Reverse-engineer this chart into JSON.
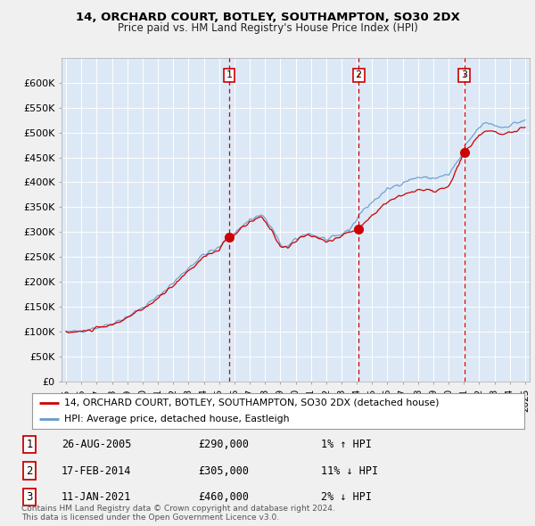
{
  "title": "14, ORCHARD COURT, BOTLEY, SOUTHAMPTON, SO30 2DX",
  "subtitle": "Price paid vs. HM Land Registry's House Price Index (HPI)",
  "ylabel_values": [
    "£0",
    "£50K",
    "£100K",
    "£150K",
    "£200K",
    "£250K",
    "£300K",
    "£350K",
    "£400K",
    "£450K",
    "£500K",
    "£550K",
    "£600K"
  ],
  "yticks": [
    0,
    50000,
    100000,
    150000,
    200000,
    250000,
    300000,
    350000,
    400000,
    450000,
    500000,
    550000,
    600000
  ],
  "ylim": [
    0,
    650000
  ],
  "xlim_start": 1994.7,
  "xlim_end": 2025.3,
  "background_color": "#f0f0f0",
  "plot_bg_color": "#dce8f5",
  "grid_color": "#ffffff",
  "sale_dates": [
    2005.65,
    2014.12,
    2021.03
  ],
  "sale_prices": [
    290000,
    305000,
    460000
  ],
  "sale_labels": [
    "1",
    "2",
    "3"
  ],
  "vline_color": "#cc0000",
  "sale_dot_color": "#cc0000",
  "legend_line1": "14, ORCHARD COURT, BOTLEY, SOUTHAMPTON, SO30 2DX (detached house)",
  "legend_line2": "HPI: Average price, detached house, Eastleigh",
  "table_rows": [
    {
      "label": "1",
      "date": "26-AUG-2005",
      "price": "£290,000",
      "hpi": "1% ↑ HPI"
    },
    {
      "label": "2",
      "date": "17-FEB-2014",
      "price": "£305,000",
      "hpi": "11% ↓ HPI"
    },
    {
      "label": "3",
      "date": "11-JAN-2021",
      "price": "£460,000",
      "hpi": "2% ↓ HPI"
    }
  ],
  "footer": "Contains HM Land Registry data © Crown copyright and database right 2024.\nThis data is licensed under the Open Government Licence v3.0.",
  "hpi_line_color": "#6699cc",
  "price_line_color": "#cc0000",
  "fig_width": 6.0,
  "fig_height": 5.9
}
